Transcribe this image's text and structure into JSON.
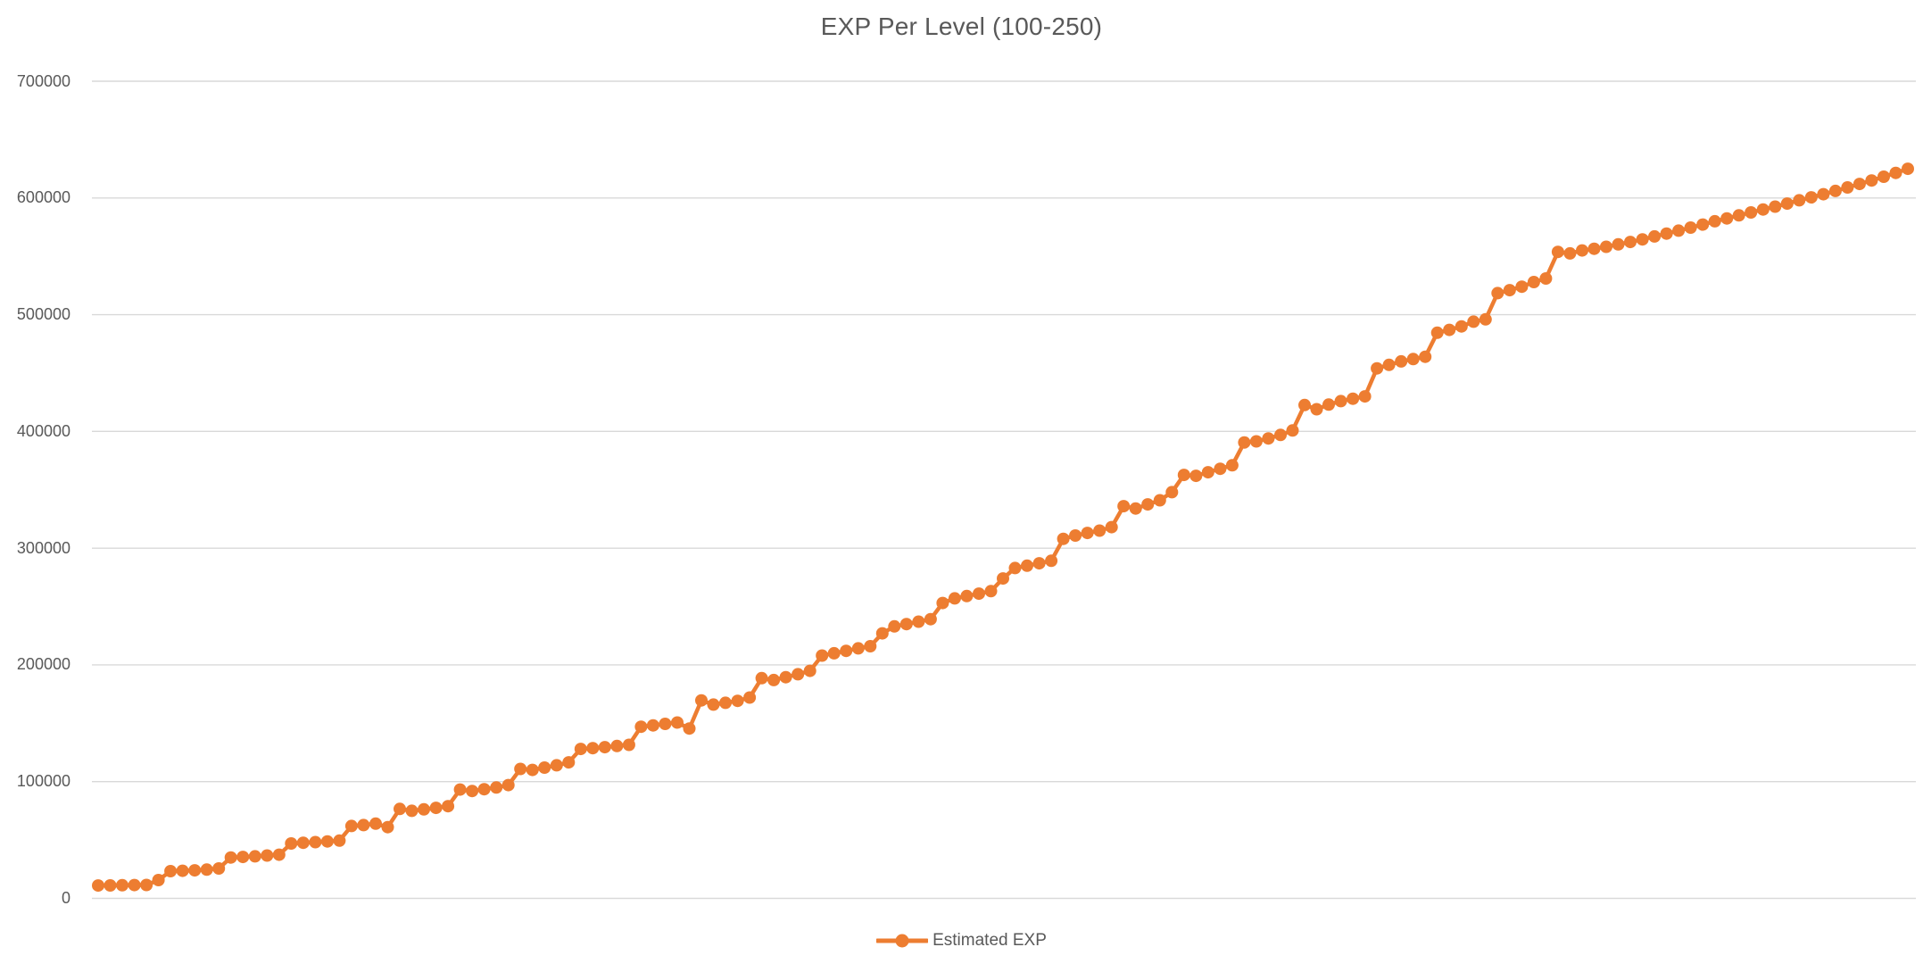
{
  "chart": {
    "title": "EXP Per Level (100-250)",
    "legend": {
      "label": "Estimated EXP",
      "position": "bottom"
    },
    "colors": {
      "series": "#ED7D31",
      "gridline": "#D9D9D9",
      "text": "#595959",
      "background": "#FFFFFF"
    },
    "y_axis": {
      "min": 0,
      "max": 700000,
      "tick_interval": 100000,
      "tick_labels": [
        "0",
        "100000",
        "200000",
        "300000",
        "400000",
        "500000",
        "600000",
        "700000"
      ]
    },
    "x_axis": {
      "min": 100,
      "max": 250,
      "labels_visible": false
    }
  },
  "chart_data": {
    "type": "line",
    "title": "EXP Per Level (100-250)",
    "xlabel": "",
    "ylabel": "",
    "ylim": [
      0,
      700000
    ],
    "grid": "horizontal",
    "legend_position": "bottom",
    "marker": "circle",
    "series": [
      {
        "name": "Estimated EXP",
        "color": "#ED7D31",
        "x": [
          100,
          101,
          102,
          103,
          104,
          105,
          106,
          107,
          108,
          109,
          110,
          111,
          112,
          113,
          114,
          115,
          116,
          117,
          118,
          119,
          120,
          121,
          122,
          123,
          124,
          125,
          126,
          127,
          128,
          129,
          130,
          131,
          132,
          133,
          134,
          135,
          136,
          137,
          138,
          139,
          140,
          141,
          142,
          143,
          144,
          145,
          146,
          147,
          148,
          149,
          150,
          151,
          152,
          153,
          154,
          155,
          156,
          157,
          158,
          159,
          160,
          161,
          162,
          163,
          164,
          165,
          166,
          167,
          168,
          169,
          170,
          171,
          172,
          173,
          174,
          175,
          176,
          177,
          178,
          179,
          180,
          181,
          182,
          183,
          184,
          185,
          186,
          187,
          188,
          189,
          190,
          191,
          192,
          193,
          194,
          195,
          196,
          197,
          198,
          199,
          200,
          201,
          202,
          203,
          204,
          205,
          206,
          207,
          208,
          209,
          210,
          211,
          212,
          213,
          214,
          215,
          216,
          217,
          218,
          219,
          220,
          221,
          222,
          223,
          224,
          225,
          226,
          227,
          228,
          229,
          230,
          231,
          232,
          233,
          234,
          235,
          236,
          237,
          238,
          239,
          240,
          241,
          242,
          243,
          244,
          245,
          246,
          247,
          248,
          249,
          250
        ],
        "values": [
          11000,
          11100,
          11250,
          11400,
          11500,
          15700,
          23300,
          23600,
          24000,
          24600,
          25600,
          35000,
          35500,
          36000,
          36700,
          37400,
          47000,
          47600,
          48200,
          48800,
          49500,
          62000,
          62800,
          64000,
          61000,
          76600,
          75000,
          76200,
          77500,
          79000,
          93200,
          92000,
          93500,
          95000,
          97000,
          110900,
          110000,
          112000,
          114000,
          116500,
          128000,
          128700,
          129500,
          130500,
          131500,
          147000,
          148200,
          149500,
          150600,
          145500,
          169600,
          166000,
          167500,
          169200,
          172000,
          188600,
          187000,
          189500,
          192000,
          194900,
          208000,
          210000,
          212000,
          214200,
          216000,
          227000,
          233000,
          235000,
          237000,
          239200,
          253000,
          257000,
          259000,
          261000,
          263200,
          274000,
          283000,
          285000,
          287000,
          289200,
          308000,
          310800,
          313000,
          315000,
          318000,
          336000,
          334000,
          337500,
          341000,
          348000,
          362700,
          362000,
          365000,
          368000,
          371000,
          390600,
          391500,
          394000,
          397000,
          400800,
          422600,
          419000,
          423000,
          426000,
          428000,
          430000,
          454000,
          457000,
          460000,
          462000,
          464000,
          484500,
          487000,
          490000,
          494000,
          496000,
          518500,
          521000,
          524000,
          528000,
          531000,
          553800,
          552500,
          555000,
          556500,
          558200,
          560200,
          562300,
          564500,
          567000,
          569500,
          572000,
          574600,
          577200,
          580000,
          582500,
          585100,
          587600,
          590100,
          592600,
          595200,
          598000,
          600500,
          603200,
          606000,
          609000,
          612000,
          615000,
          618200,
          621500,
          625000
        ]
      }
    ]
  }
}
